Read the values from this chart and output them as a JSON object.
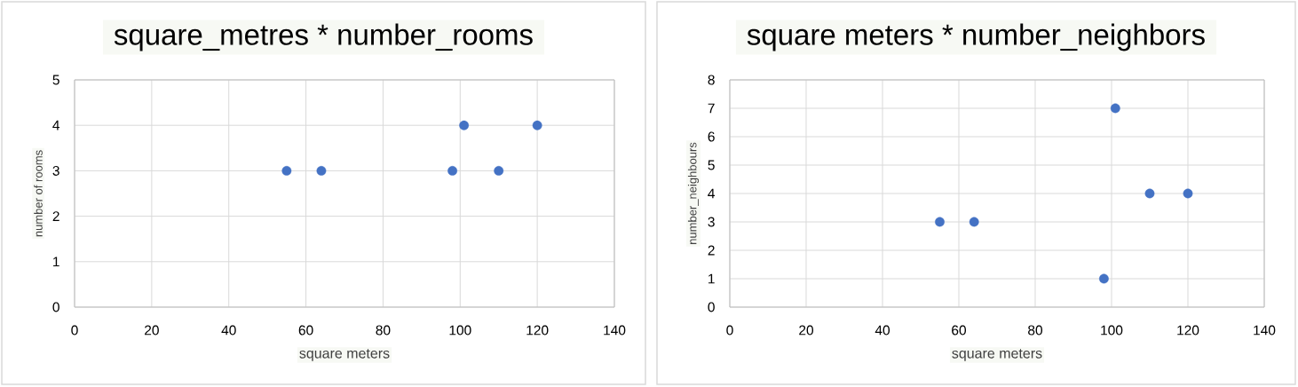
{
  "chart_data": [
    {
      "type": "scatter",
      "title": "square_metres * number_rooms",
      "xlabel": "square meters",
      "ylabel": "number of rooms",
      "x": [
        55,
        64,
        98,
        101,
        110,
        120
      ],
      "values": [
        3,
        3,
        3,
        4,
        3,
        4
      ],
      "color": "#4472c4",
      "marker": "circle",
      "xlim": [
        0,
        140
      ],
      "xticks": [
        0,
        20,
        40,
        60,
        80,
        100,
        120,
        140
      ],
      "ylim": [
        0,
        5
      ],
      "yticks": [
        0,
        1,
        2,
        3,
        4,
        5
      ],
      "grid": true
    },
    {
      "type": "scatter",
      "title": "square meters * number_neighbors",
      "xlabel": "square meters",
      "ylabel": "number_neighbours",
      "x": [
        55,
        64,
        98,
        101,
        110,
        120
      ],
      "values": [
        3,
        3,
        1,
        7,
        4,
        4
      ],
      "color": "#4472c4",
      "marker": "circle",
      "xlim": [
        0,
        140
      ],
      "xticks": [
        0,
        20,
        40,
        60,
        80,
        100,
        120,
        140
      ],
      "ylim": [
        0,
        8
      ],
      "yticks": [
        0,
        1,
        2,
        3,
        4,
        5,
        6,
        7,
        8
      ],
      "grid": true
    }
  ]
}
